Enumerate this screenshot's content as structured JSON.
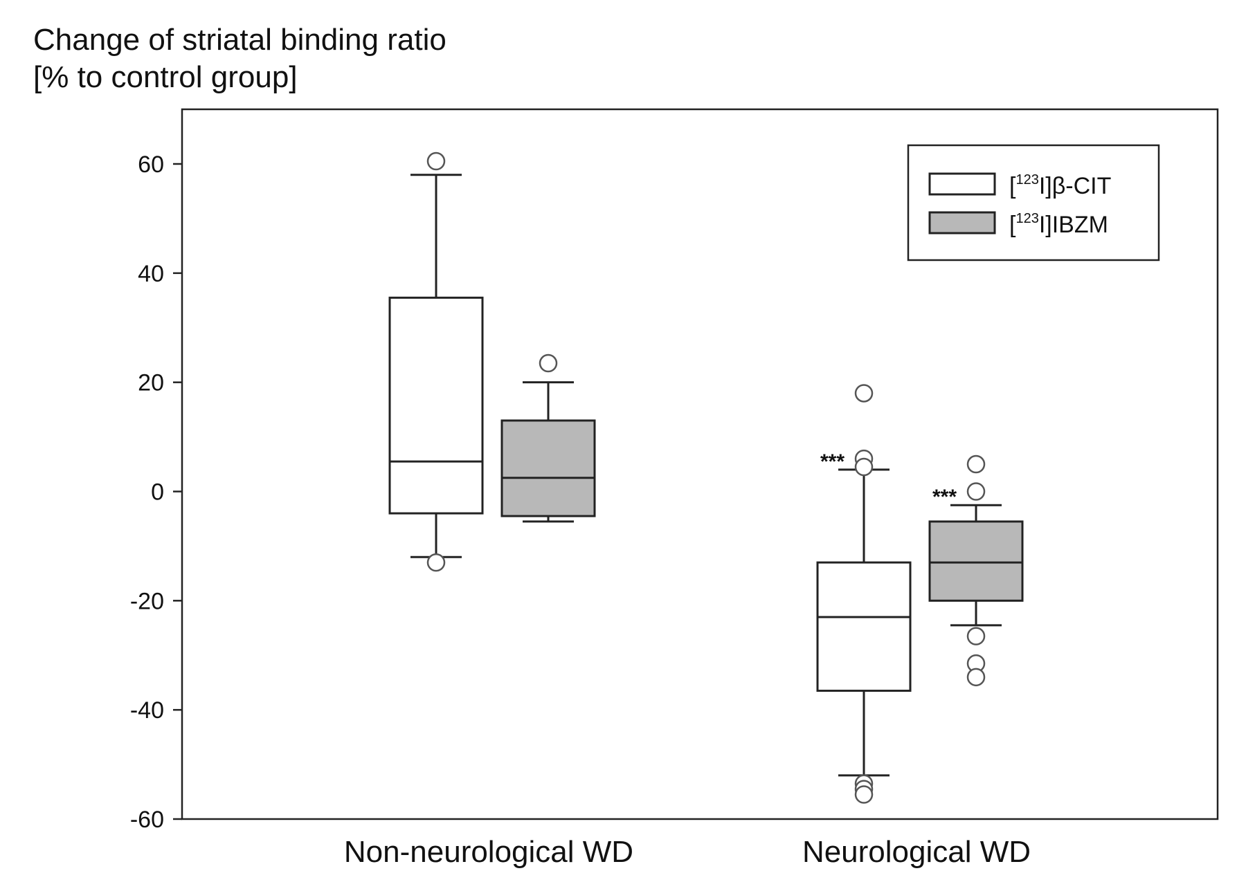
{
  "chart_data": {
    "type": "box",
    "title_lines": [
      "Change of striatal binding ratio",
      "[% to control group]"
    ],
    "ylim": [
      -60,
      70
    ],
    "yticks": [
      60,
      40,
      20,
      0,
      -20,
      -40,
      -60
    ],
    "ytick_labels": [
      "60",
      "40",
      "20",
      "0",
      "-20",
      "-40",
      "-60"
    ],
    "categories": [
      "Non-neurological WD",
      "Neurological WD"
    ],
    "legend": {
      "placement": "top-right",
      "entries": [
        {
          "prefix": "[",
          "sup": "123",
          "suffix": "I]β-CIT"
        },
        {
          "prefix": "[",
          "sup": "123",
          "suffix": "I]IBZM"
        }
      ]
    },
    "series": [
      {
        "name": "[123I]β-CIT",
        "fill": "#ffffff",
        "boxes": [
          {
            "category": "Non-neurological WD",
            "whisker_low": -12,
            "q1": -4,
            "median": 5.5,
            "q3": 35.5,
            "whisker_high": 58,
            "outliers": [
              60.5,
              -13
            ]
          },
          {
            "category": "Neurological WD",
            "whisker_low": -52,
            "q1": -36.5,
            "median": -23,
            "q3": -13,
            "whisker_high": 4,
            "outliers": [
              18,
              6,
              4.5,
              -53.5,
              -54.5,
              -55.5
            ]
          }
        ]
      },
      {
        "name": "[123I]IBZM",
        "fill": "#b8b8b8",
        "boxes": [
          {
            "category": "Non-neurological WD",
            "whisker_low": -5.5,
            "q1": -4.5,
            "median": 2.5,
            "q3": 13,
            "whisker_high": 20,
            "outliers": [
              23.5
            ]
          },
          {
            "category": "Neurological WD",
            "whisker_low": -24.5,
            "q1": -20,
            "median": -13,
            "q3": -5.5,
            "whisker_high": -2.5,
            "outliers": [
              5,
              0,
              -26.5,
              -31.5,
              -34
            ]
          }
        ]
      }
    ],
    "annotations": [
      {
        "text": "***",
        "series": 0,
        "category": "Neurological WD"
      },
      {
        "text": "***",
        "series": 1,
        "category": "Neurological WD"
      }
    ]
  }
}
